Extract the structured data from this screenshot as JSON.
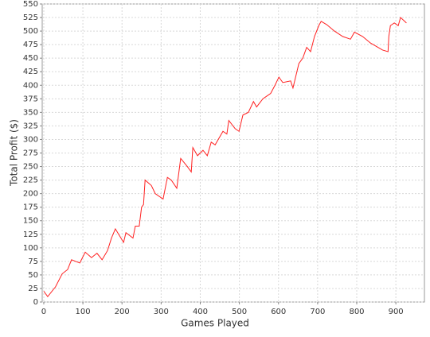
{
  "chart_data": {
    "type": "line",
    "x_label": "Games Played",
    "y_label": "Total Profit ($)",
    "x": [
      0,
      10,
      30,
      47,
      61,
      71,
      92,
      106,
      122,
      136,
      149,
      163,
      173,
      183,
      204,
      210,
      228,
      234,
      244,
      250,
      255,
      259,
      275,
      285,
      305,
      316,
      326,
      340,
      350,
      367,
      377,
      381,
      393,
      407,
      418,
      428,
      438,
      458,
      468,
      473,
      489,
      499,
      509,
      523,
      536,
      544,
      560,
      570,
      580,
      591,
      601,
      611,
      631,
      637,
      652,
      662,
      672,
      682,
      692,
      703,
      709,
      723,
      743,
      764,
      784,
      794,
      815,
      835,
      866,
      880,
      882,
      886,
      896,
      906,
      912,
      927
    ],
    "values": [
      20,
      10,
      28,
      52,
      60,
      78,
      72,
      92,
      82,
      90,
      78,
      95,
      118,
      135,
      110,
      128,
      118,
      140,
      140,
      175,
      180,
      225,
      215,
      200,
      190,
      230,
      225,
      210,
      265,
      250,
      240,
      285,
      270,
      280,
      270,
      295,
      290,
      315,
      310,
      335,
      320,
      315,
      345,
      350,
      370,
      360,
      375,
      380,
      385,
      400,
      415,
      405,
      408,
      395,
      440,
      450,
      470,
      462,
      490,
      510,
      518,
      512,
      500,
      490,
      485,
      498,
      490,
      478,
      465,
      462,
      490,
      510,
      515,
      510,
      525,
      515
    ],
    "color": "#ff2020",
    "xlim": [
      -4,
      973
    ],
    "ylim": [
      0,
      550
    ],
    "xticks": [
      0,
      100,
      200,
      300,
      400,
      500,
      600,
      700,
      800,
      900
    ],
    "yticks": [
      0,
      25,
      50,
      75,
      100,
      125,
      150,
      175,
      200,
      225,
      250,
      275,
      300,
      325,
      350,
      375,
      400,
      425,
      450,
      475,
      500,
      525,
      550
    ],
    "grid": true
  }
}
